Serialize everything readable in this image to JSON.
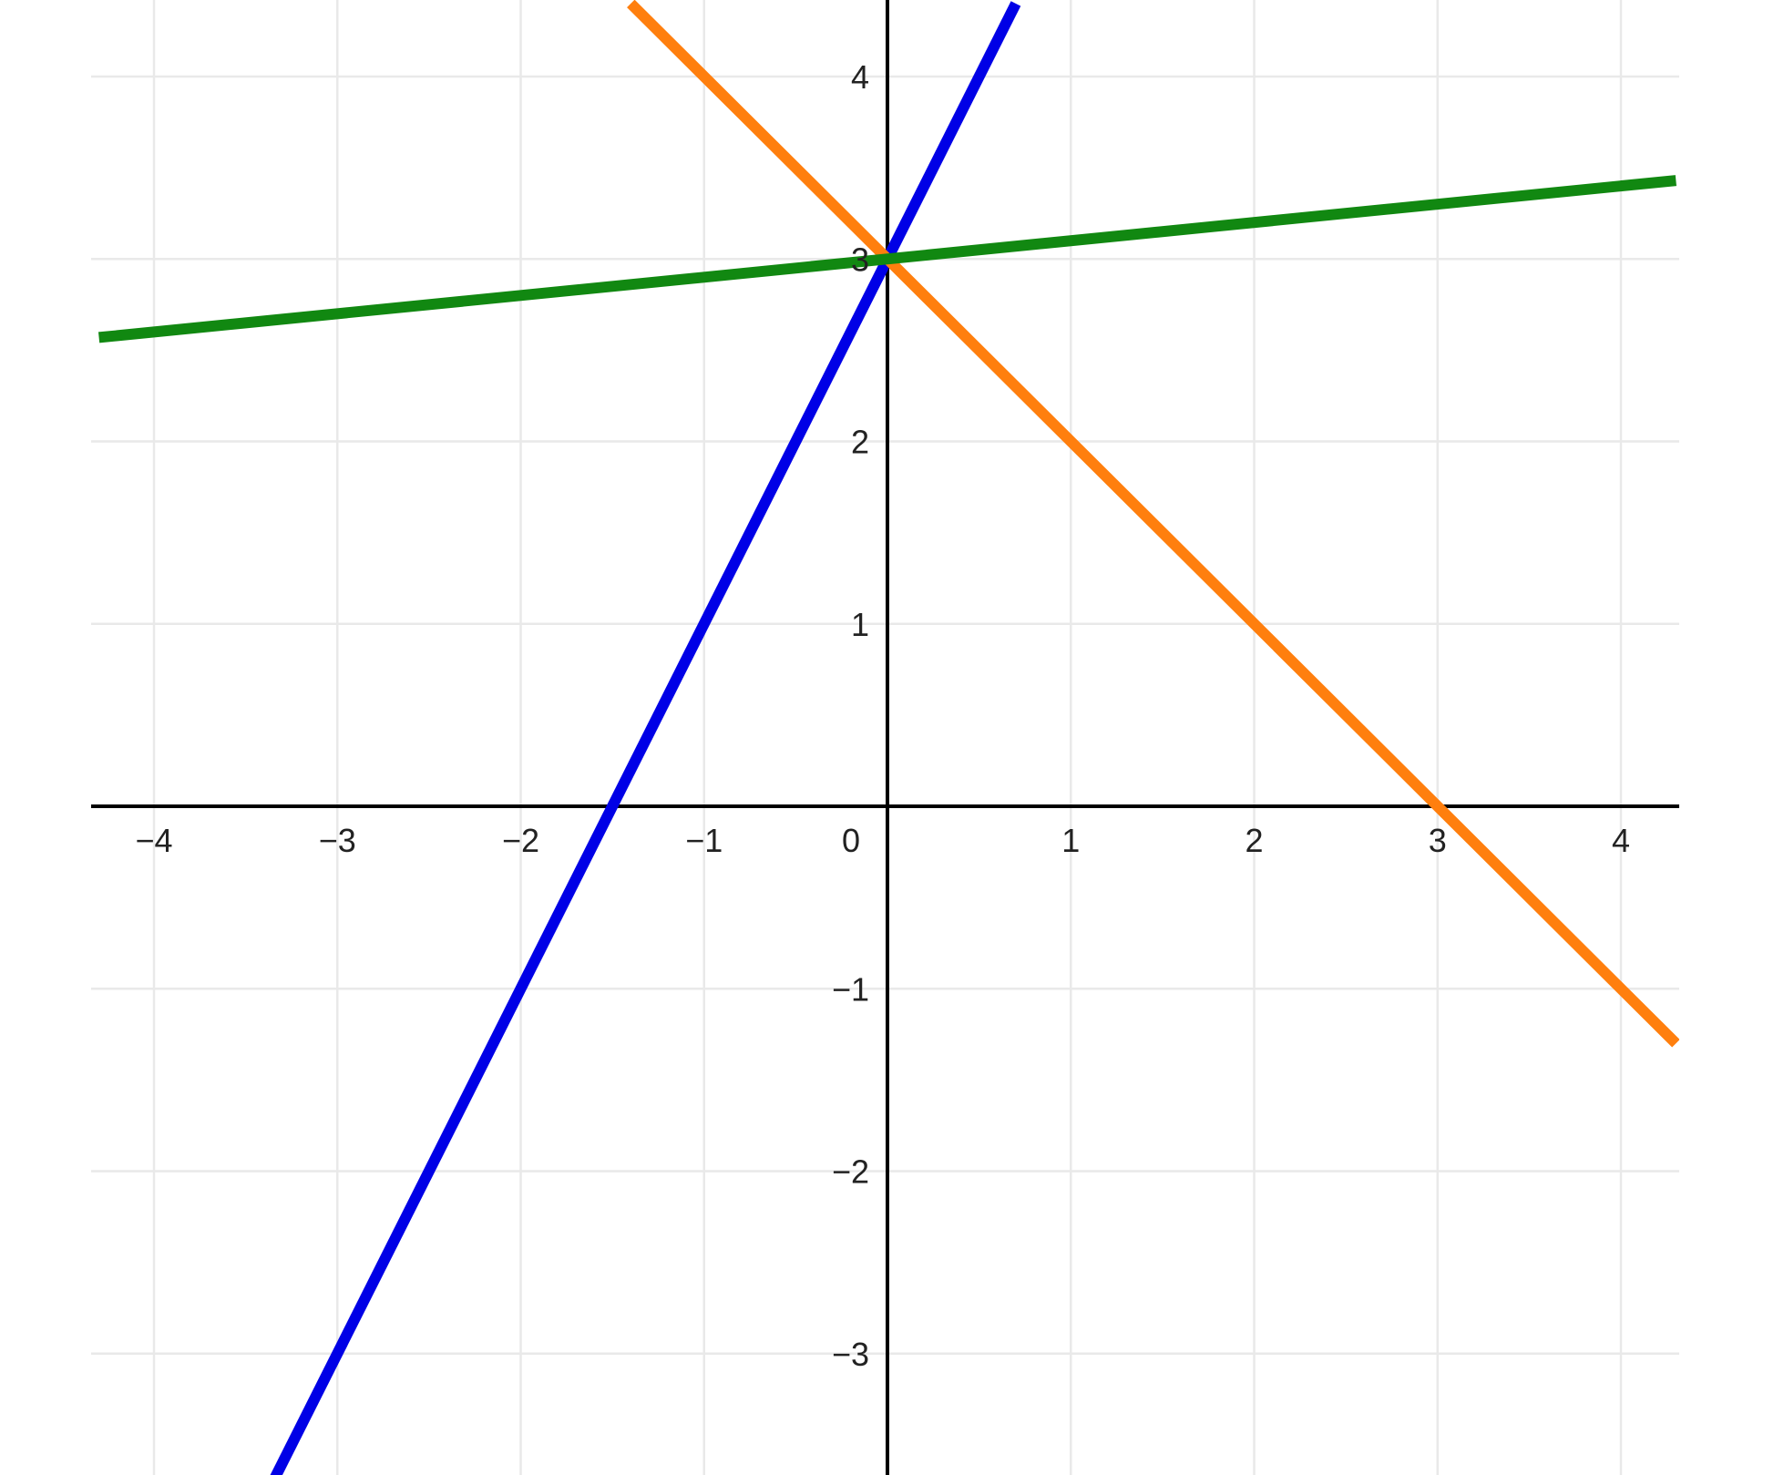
{
  "chart_data": {
    "type": "line",
    "title": "",
    "xlabel": "",
    "ylabel": "",
    "xlim": [
      -4.3,
      4.3
    ],
    "ylim": [
      -3.6,
      4.4
    ],
    "grid": true,
    "x_ticks": [
      -4,
      -3,
      -2,
      -1,
      0,
      1,
      2,
      3,
      4
    ],
    "y_ticks": [
      -3,
      -2,
      -1,
      1,
      2,
      3,
      4
    ],
    "x_tick_labels": [
      "−4",
      "−3",
      "−2",
      "−1",
      "0",
      "1",
      "2",
      "3",
      "4"
    ],
    "y_tick_labels": [
      "−3",
      "−2",
      "−1",
      "1",
      "2",
      "3",
      "4"
    ],
    "series": [
      {
        "color": "#0000e6",
        "x": [
          -3.35,
          0.7
        ],
        "y": [
          -3.7,
          4.4
        ]
      },
      {
        "color": "#ff7f0e",
        "x": [
          -1.4,
          4.3
        ],
        "y": [
          4.4,
          -1.3
        ]
      },
      {
        "color": "#118811",
        "x": [
          -4.3,
          4.3
        ],
        "y": [
          2.57,
          3.43
        ]
      }
    ]
  }
}
